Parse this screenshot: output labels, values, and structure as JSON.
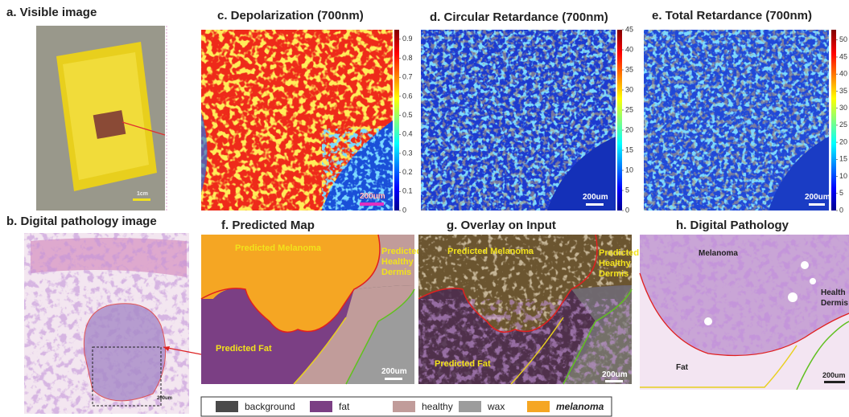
{
  "panels": {
    "a": {
      "title": "a. Visible image",
      "scale_label": "1cm"
    },
    "b": {
      "title": "b. Digital pathology image",
      "scale_label": "200um"
    },
    "c": {
      "title": "c. Depolarization (700nm)",
      "scale_label": "200um",
      "colorbar": {
        "lim": [
          0,
          0.95
        ],
        "ticks": [
          0,
          0.1,
          0.2,
          0.3,
          0.4,
          0.5,
          0.6,
          0.7,
          0.8,
          0.9
        ]
      }
    },
    "d": {
      "title": "d. Circular Retardance (700nm)",
      "scale_label": "200um",
      "colorbar": {
        "lim": [
          0,
          45
        ],
        "ticks": [
          0,
          5,
          10,
          15,
          20,
          25,
          30,
          35,
          40,
          45
        ]
      }
    },
    "e": {
      "title": "e. Total Retardance (700nm)",
      "scale_label": "200um",
      "colorbar": {
        "lim": [
          0,
          53
        ],
        "ticks": [
          0,
          5,
          10,
          15,
          20,
          25,
          30,
          35,
          40,
          45,
          50
        ]
      }
    },
    "f": {
      "title": "f. Predicted Map",
      "melanoma": "Predicted Melanoma",
      "dermis": [
        "Predicted",
        "Healthy",
        "Dermis"
      ],
      "fat": "Predicted Fat",
      "scale_label": "200um"
    },
    "g": {
      "title": "g. Overlay on Input",
      "melanoma": "Predicted Melanoma",
      "dermis": [
        "Predicted",
        "Healthy",
        "Dermis"
      ],
      "fat": "Predicted Fat",
      "scale_label": "200um"
    },
    "h": {
      "title": "h. Digital Pathology",
      "melanoma": "Melanoma",
      "dermis": [
        "Health",
        "Dermis"
      ],
      "fat": "Fat",
      "scale_label": "200um"
    }
  },
  "legend": [
    {
      "name": "background",
      "color": "#4a4a4a"
    },
    {
      "name": "fat",
      "color": "#7b3f84"
    },
    {
      "name": "healthy",
      "color": "#c19c9a"
    },
    {
      "name": "wax",
      "color": "#9c9c9c"
    },
    {
      "name": "melanoma",
      "color": "#f5a623",
      "emphasis": true
    }
  ]
}
